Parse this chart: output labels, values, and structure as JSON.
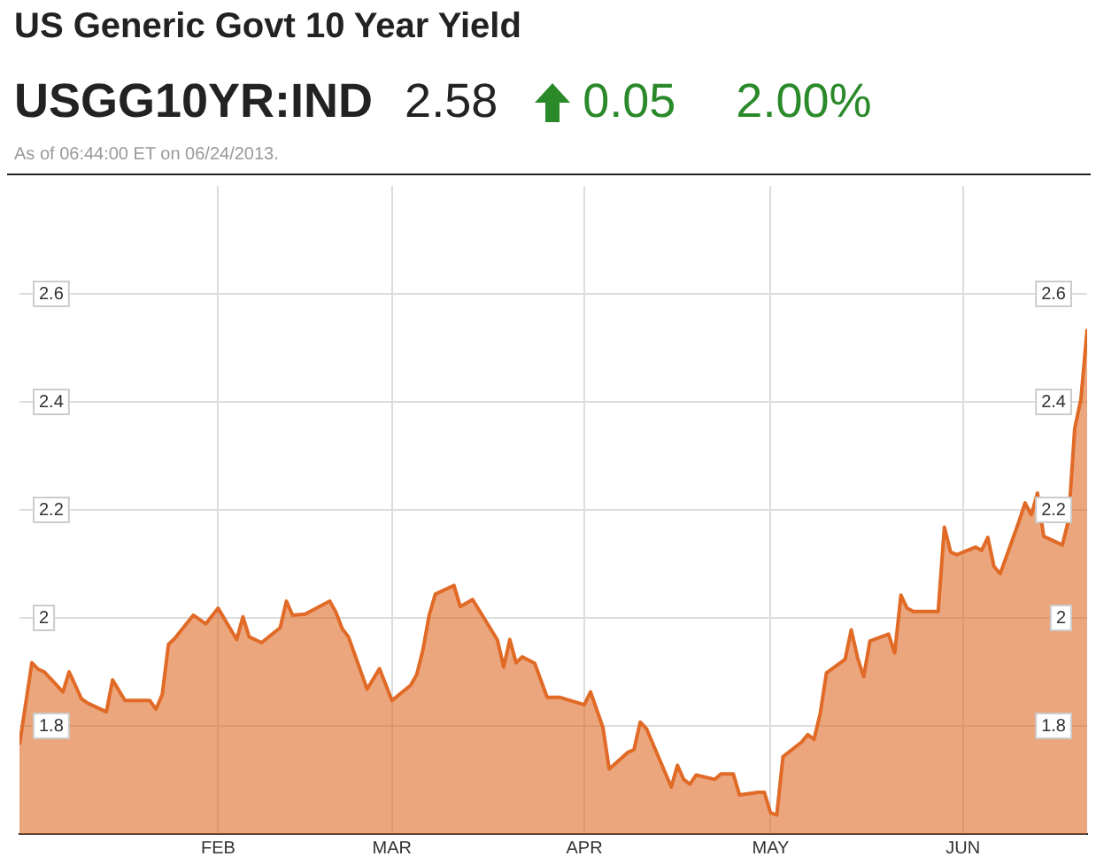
{
  "chart_data": {
    "type": "area",
    "title": "US Generic Govt 10 Year Yield",
    "annotations": [
      "USGG10YR:IND",
      "2.58",
      "0.05",
      "2.00%",
      "As of 06:44:00 ET on 06/24/2013."
    ],
    "x": [
      "2012-12-31",
      "2013-01-02",
      "2013-01-03",
      "2013-01-04",
      "2013-01-07",
      "2013-01-08",
      "2013-01-10",
      "2013-01-11",
      "2013-01-14",
      "2013-01-15",
      "2013-01-17",
      "2013-01-21",
      "2013-01-22",
      "2013-01-23",
      "2013-01-24",
      "2013-01-25",
      "2013-01-28",
      "2013-01-30",
      "2013-02-01",
      "2013-02-04",
      "2013-02-05",
      "2013-02-06",
      "2013-02-08",
      "2013-02-11",
      "2013-02-12",
      "2013-02-13",
      "2013-02-15",
      "2013-02-19",
      "2013-02-20",
      "2013-02-21",
      "2013-02-22",
      "2013-02-25",
      "2013-02-27",
      "2013-03-01",
      "2013-03-04",
      "2013-03-05",
      "2013-03-06",
      "2013-03-07",
      "2013-03-08",
      "2013-03-11",
      "2013-03-12",
      "2013-03-14",
      "2013-03-18",
      "2013-03-19",
      "2013-03-20",
      "2013-03-21",
      "2013-03-22",
      "2013-03-24",
      "2013-03-26",
      "2013-03-28",
      "2013-04-01",
      "2013-04-02",
      "2013-04-04",
      "2013-04-05",
      "2013-04-08",
      "2013-04-09",
      "2013-04-10",
      "2013-04-11",
      "2013-04-15",
      "2013-04-16",
      "2013-04-17",
      "2013-04-18",
      "2013-04-19",
      "2013-04-22",
      "2013-04-23",
      "2013-04-25",
      "2013-04-26",
      "2013-04-29",
      "2013-04-30",
      "2013-05-01",
      "2013-05-02",
      "2013-05-03",
      "2013-05-06",
      "2013-05-07",
      "2013-05-08",
      "2013-05-09",
      "2013-05-10",
      "2013-05-13",
      "2013-05-14",
      "2013-05-15",
      "2013-05-16",
      "2013-05-17",
      "2013-05-20",
      "2013-05-21",
      "2013-05-22",
      "2013-05-23",
      "2013-05-24",
      "2013-05-28",
      "2013-05-29",
      "2013-05-30",
      "2013-05-31",
      "2013-06-03",
      "2013-06-04",
      "2013-06-05",
      "2013-06-06",
      "2013-06-07",
      "2013-06-10",
      "2013-06-11",
      "2013-06-12",
      "2013-06-13",
      "2013-06-14",
      "2013-06-17",
      "2013-06-18",
      "2013-06-19",
      "2013-06-20",
      "2013-06-21"
    ],
    "series": [
      {
        "color": "#e06a26",
        "values": [
          1.765,
          1.917,
          1.905,
          1.9,
          1.863,
          1.9,
          1.85,
          1.842,
          1.826,
          1.885,
          1.847,
          1.847,
          1.831,
          1.858,
          1.951,
          1.962,
          2.005,
          1.989,
          2.018,
          1.96,
          2.002,
          1.965,
          1.954,
          1.982,
          2.031,
          2.005,
          2.007,
          2.031,
          2.01,
          1.98,
          1.965,
          1.868,
          1.906,
          1.847,
          1.875,
          1.895,
          1.941,
          2.005,
          2.044,
          2.06,
          2.021,
          2.034,
          1.959,
          1.909,
          1.96,
          1.917,
          1.928,
          1.916,
          1.853,
          1.853,
          1.839,
          1.863,
          1.797,
          1.72,
          1.751,
          1.756,
          1.807,
          1.795,
          1.687,
          1.727,
          1.701,
          1.692,
          1.709,
          1.701,
          1.711,
          1.711,
          1.672,
          1.677,
          1.677,
          1.639,
          1.635,
          1.743,
          1.77,
          1.784,
          1.775,
          1.823,
          1.898,
          1.923,
          1.978,
          1.927,
          1.891,
          1.957,
          1.97,
          1.935,
          2.042,
          2.018,
          2.012,
          2.012,
          2.168,
          2.122,
          2.117,
          2.131,
          2.125,
          2.149,
          2.095,
          2.082,
          2.178,
          2.213,
          2.191,
          2.231,
          2.151,
          2.135,
          2.181,
          2.351,
          2.405,
          2.535
        ]
      }
    ],
    "xlim": [
      "2012-12-31",
      "2013-06-21"
    ],
    "xticks": [
      {
        "value": "2013-02-01",
        "label": "FEB"
      },
      {
        "value": "2013-03-01",
        "label": "MAR"
      },
      {
        "value": "2013-04-01",
        "label": "APR"
      },
      {
        "value": "2013-05-01",
        "label": "MAY"
      },
      {
        "value": "2013-06-01",
        "label": "JUN"
      }
    ],
    "ylim": [
      1.6,
      2.8
    ],
    "yticks": [
      {
        "value": 1.8,
        "label": "1.8"
      },
      {
        "value": 2,
        "label": "2"
      },
      {
        "value": 2.2,
        "label": "2.2"
      },
      {
        "value": 2.4,
        "label": "2.4"
      },
      {
        "value": 2.6,
        "label": "2.6"
      }
    ],
    "y2lim": [
      1.6,
      2.8
    ],
    "y2ticks": [
      {
        "value": 1.8,
        "label": "1.8"
      },
      {
        "value": 2,
        "label": "2"
      },
      {
        "value": 2.2,
        "label": "2.2"
      },
      {
        "value": 2.4,
        "label": "2.4"
      },
      {
        "value": 2.6,
        "label": "2.6"
      }
    ],
    "grid": true,
    "legend": false
  }
}
